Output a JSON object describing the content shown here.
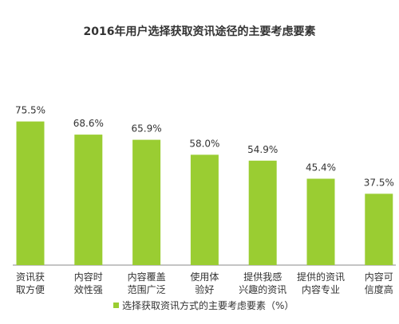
{
  "chart_data": {
    "type": "bar",
    "title": "2016年用户选择获取资讯途径的主要考虑要素",
    "categories": [
      [
        "资讯获",
        "取方便"
      ],
      [
        "内容时",
        "效性强"
      ],
      [
        "内容覆盖",
        "范围广泛"
      ],
      [
        "使用体",
        "验好"
      ],
      [
        "提供我感",
        "兴趣的资讯"
      ],
      [
        "提供的资讯",
        "内容专业"
      ],
      [
        "内容可",
        "信度高"
      ]
    ],
    "series": [
      {
        "name": "选择获取资讯方式的主要考虑要素（%）",
        "values": [
          75.5,
          68.6,
          65.9,
          58.0,
          54.9,
          45.4,
          37.5
        ],
        "value_labels": [
          "75.5%",
          "68.6%",
          "65.9%",
          "58.0%",
          "54.9%",
          "45.4%",
          "37.5%"
        ]
      }
    ],
    "ylim": [
      0,
      90
    ],
    "grid": false,
    "legend_position": "bottom-center",
    "colors": {
      "bar": "#9ACD32",
      "axis": "#888888",
      "text": "#333333"
    }
  }
}
